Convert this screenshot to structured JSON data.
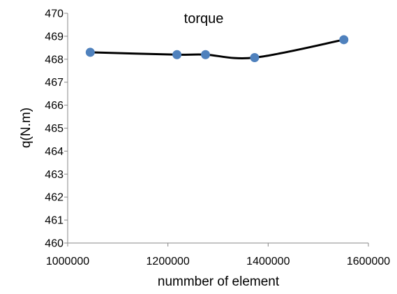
{
  "chart_data": {
    "type": "scatter",
    "title": "torque",
    "xlabel": "nummber of element",
    "ylabel": "q(N.m)",
    "xlim": [
      1000000,
      1600000
    ],
    "ylim": [
      460,
      470
    ],
    "x_ticks": [
      1000000,
      1200000,
      1400000,
      1600000
    ],
    "y_ticks": [
      460,
      461,
      462,
      463,
      464,
      465,
      466,
      467,
      468,
      469,
      470
    ],
    "grid": false,
    "smooth_line": true,
    "series": [
      {
        "x": [
          1045000,
          1218000,
          1275000,
          1373000,
          1551000
        ],
        "y": [
          468.3,
          468.2,
          468.2,
          468.07,
          468.85
        ],
        "color": "#4F81BD",
        "line_color": "#000000"
      }
    ]
  }
}
